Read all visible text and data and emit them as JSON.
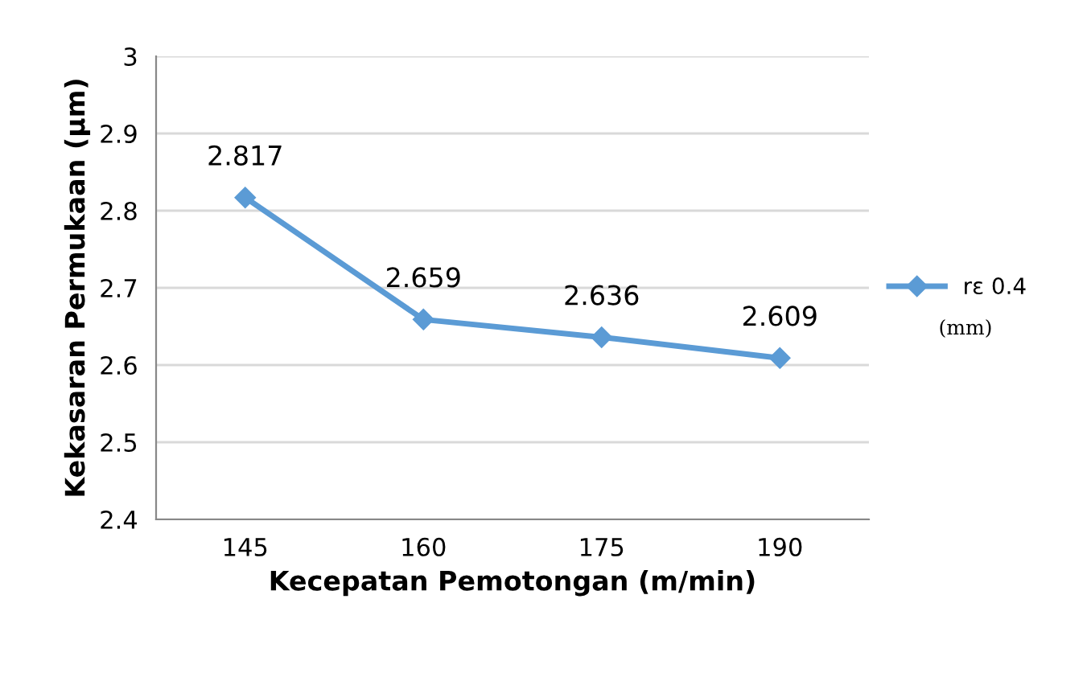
{
  "chart_data": {
    "type": "line",
    "xlabel": "Kecepatan Pemotongan (m/min)",
    "ylabel": "Kekasaran Permukaan (µm)",
    "categories": [
      "145",
      "160",
      "175",
      "190"
    ],
    "series": [
      {
        "name": "rε 0.4",
        "color": "#5b9bd5",
        "values": [
          2.817,
          2.659,
          2.636,
          2.609
        ]
      }
    ],
    "ylim": [
      2.4,
      3
    ],
    "yticks": [
      2.4,
      2.5,
      2.6,
      2.7,
      2.8,
      2.9,
      3
    ],
    "grid": "y",
    "legend": "right",
    "marker": "diamond",
    "line_style": "solid",
    "data_labels": true,
    "annotations": [
      "(mm)"
    ]
  }
}
